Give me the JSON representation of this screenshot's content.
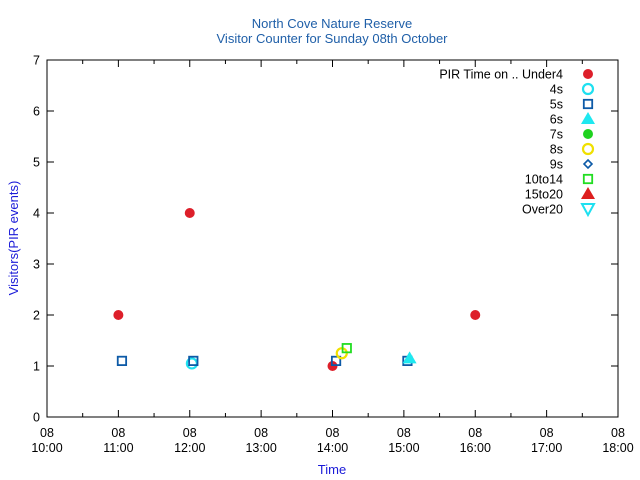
{
  "chart_data": {
    "type": "scatter",
    "title": "North Cove Nature Reserve",
    "subtitle": "Visitor Counter for Sunday 08th October",
    "xlabel": "Time",
    "ylabel": "Visitors(PIR events)",
    "x_ticks": [
      {
        "value": 10,
        "day": "08",
        "time": "10:00"
      },
      {
        "value": 11,
        "day": "08",
        "time": "11:00"
      },
      {
        "value": 12,
        "day": "08",
        "time": "12:00"
      },
      {
        "value": 13,
        "day": "08",
        "time": "13:00"
      },
      {
        "value": 14,
        "day": "08",
        "time": "14:00"
      },
      {
        "value": 15,
        "day": "08",
        "time": "15:00"
      },
      {
        "value": 16,
        "day": "08",
        "time": "16:00"
      },
      {
        "value": 17,
        "day": "08",
        "time": "17:00"
      },
      {
        "value": 18,
        "day": "08",
        "time": "18:00"
      }
    ],
    "y_ticks": [
      "0",
      "1",
      "2",
      "3",
      "4",
      "5",
      "6",
      "7"
    ],
    "xlim": [
      10,
      18
    ],
    "ylim": [
      0,
      7
    ],
    "grid": false,
    "legend_position": "top-right",
    "legend_title": "PIR Time on ..",
    "series": [
      {
        "name": "Under4",
        "marker": "circle-filled",
        "color": "#dd1f2a",
        "points": [
          {
            "x": 11.0,
            "y": 2
          },
          {
            "x": 12.0,
            "y": 4
          },
          {
            "x": 14.0,
            "y": 1
          },
          {
            "x": 16.0,
            "y": 2
          }
        ]
      },
      {
        "name": "4s",
        "marker": "circle-open",
        "color": "#1ee0f0",
        "points": [
          {
            "x": 12.03,
            "y": 1.05
          }
        ]
      },
      {
        "name": "5s",
        "marker": "square-open",
        "color": "#0d5aa7",
        "points": [
          {
            "x": 11.05,
            "y": 1.1
          },
          {
            "x": 12.05,
            "y": 1.1
          },
          {
            "x": 14.05,
            "y": 1.1
          },
          {
            "x": 15.05,
            "y": 1.1
          }
        ]
      },
      {
        "name": "6s",
        "marker": "triangle-filled",
        "color": "#1ee8f0",
        "points": [
          {
            "x": 15.08,
            "y": 1.15
          }
        ]
      },
      {
        "name": "7s",
        "marker": "circle-filled",
        "color": "#1fd21f",
        "points": []
      },
      {
        "name": "8s",
        "marker": "circle-open",
        "color": "#f0e000",
        "points": [
          {
            "x": 14.13,
            "y": 1.25
          }
        ]
      },
      {
        "name": "9s",
        "marker": "diamond-open",
        "color": "#0d5aa7",
        "points": []
      },
      {
        "name": "10to14",
        "marker": "square-open",
        "color": "#22dd22",
        "points": [
          {
            "x": 14.2,
            "y": 1.35
          }
        ]
      },
      {
        "name": "15to20",
        "marker": "triangle-filled",
        "color": "#dd1f1f",
        "points": []
      },
      {
        "name": "Over20",
        "marker": "triangle-down-open",
        "color": "#1ee0f0",
        "points": []
      }
    ]
  }
}
